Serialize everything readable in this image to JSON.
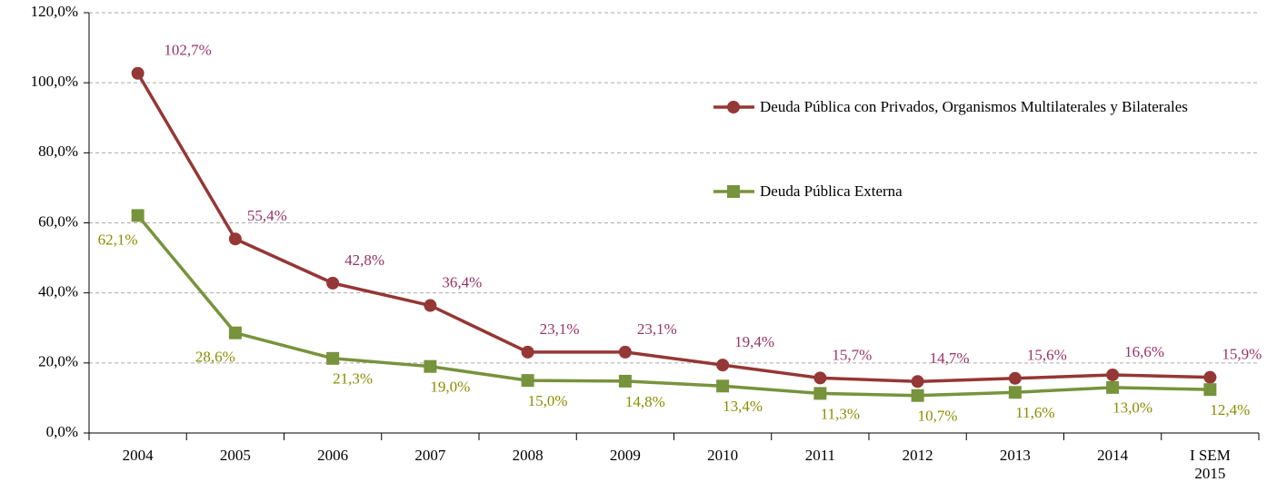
{
  "chart_data": {
    "type": "line",
    "categories": [
      "2004",
      "2005",
      "2006",
      "2007",
      "2008",
      "2009",
      "2010",
      "2011",
      "2012",
      "2013",
      "2014",
      "I SEM 2015"
    ],
    "series": [
      {
        "name": "Deuda Pública con Privados, Organismos Multilaterales y Bilaterales",
        "color": "#953735",
        "label_color": "#993366",
        "marker": "circle",
        "values": [
          102.7,
          55.4,
          42.8,
          36.4,
          23.1,
          23.1,
          19.4,
          15.7,
          14.7,
          15.6,
          16.6,
          15.9
        ],
        "value_labels": [
          "102,7%",
          "55,4%",
          "42,8%",
          "36,4%",
          "23,1%",
          "23,1%",
          "19,4%",
          "15,7%",
          "14,7%",
          "15,6%",
          "16,6%",
          "15,9%"
        ]
      },
      {
        "name": "Deuda Pública Externa",
        "color": "#77933c",
        "label_color": "#8c8c00",
        "marker": "square",
        "values": [
          62.1,
          28.6,
          21.3,
          19.0,
          15.0,
          14.8,
          13.4,
          11.3,
          10.7,
          11.6,
          13.0,
          12.4
        ],
        "value_labels": [
          "62,1%",
          "28,6%",
          "21,3%",
          "19,0%",
          "15,0%",
          "14,8%",
          "13,4%",
          "11,3%",
          "10,7%",
          "11,6%",
          "13,0%",
          "12,4%"
        ]
      }
    ],
    "ylim": [
      0,
      120
    ],
    "yticks": [
      {
        "value": 0,
        "label": "0,0%"
      },
      {
        "value": 20,
        "label": "20,0%"
      },
      {
        "value": 40,
        "label": "40,0%"
      },
      {
        "value": 60,
        "label": "60,0%"
      },
      {
        "value": 80,
        "label": "80,0%"
      },
      {
        "value": 100,
        "label": "100,0%"
      },
      {
        "value": 120,
        "label": "120,0%"
      }
    ],
    "grid": true
  }
}
